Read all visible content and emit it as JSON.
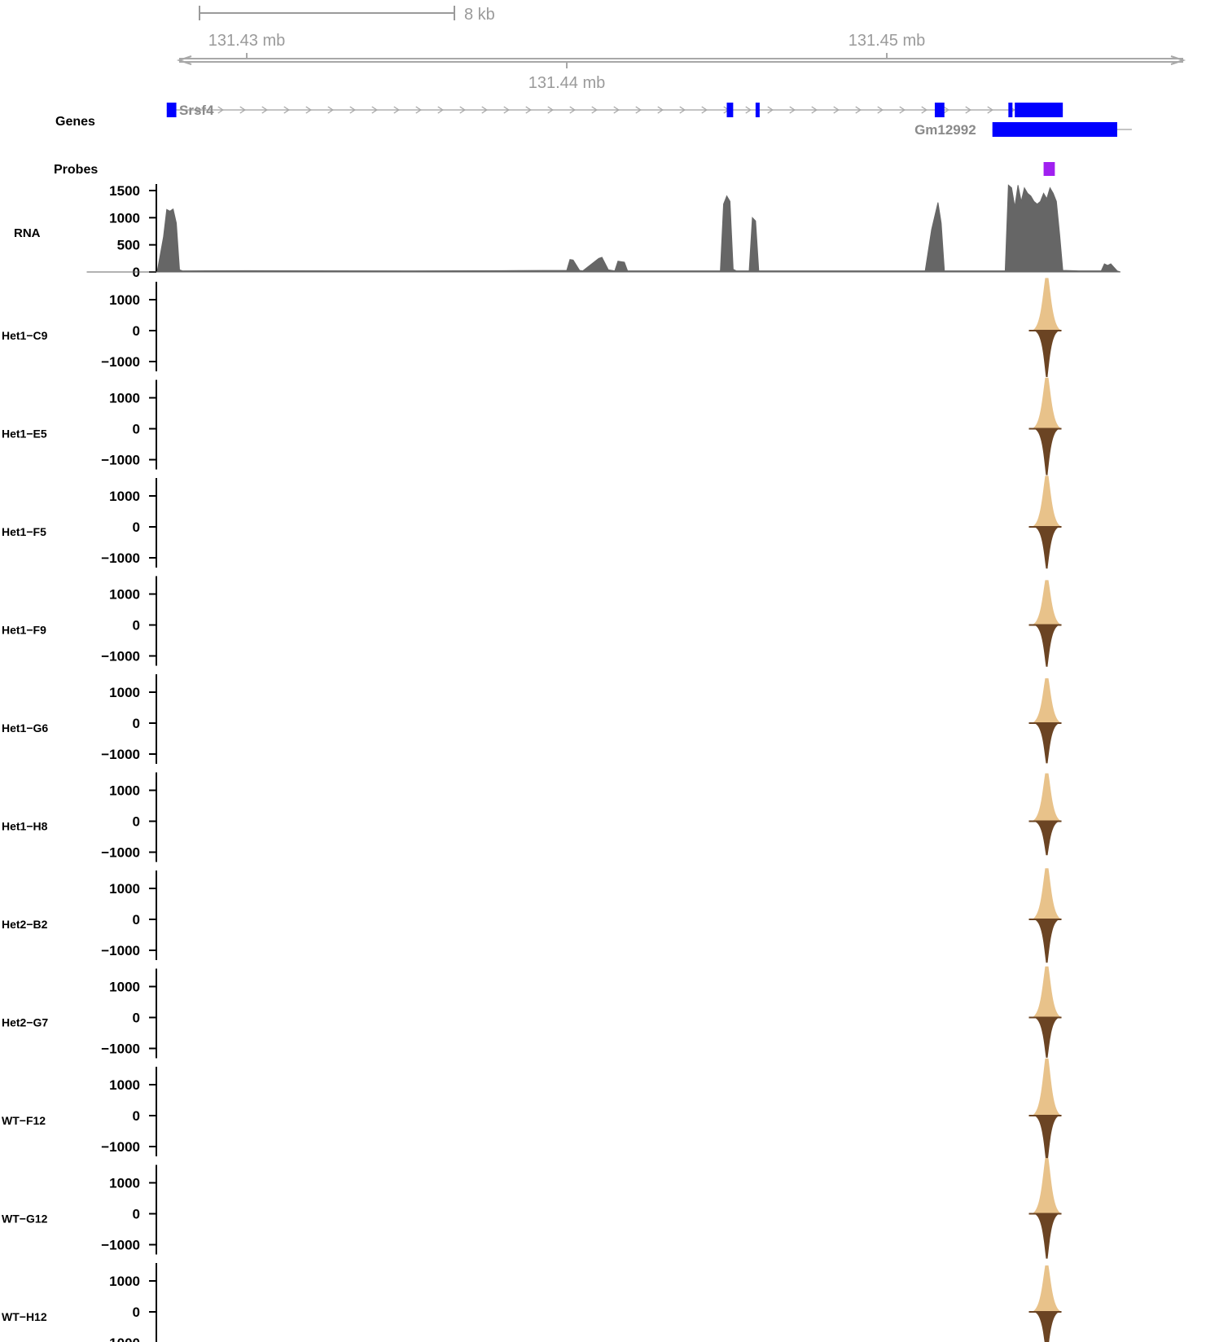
{
  "colors": {
    "gene": "#0000ff",
    "probe": "#a020f0",
    "rna": "#666666",
    "positive": "#e8c28a",
    "negative": "#6b4423",
    "axis_grey": "#a0a0a0"
  },
  "chart_data": {
    "type": "area",
    "x_unit": "mb",
    "scale_bar_label": "8 kb",
    "genome_axis": {
      "ticks": [
        131.43,
        131.44,
        131.45
      ],
      "tick_labels": [
        "131.43 mb",
        "131.44 mb",
        "131.45 mb"
      ]
    },
    "genes_track": {
      "label": "Genes",
      "genes": [
        {
          "name": "Srsf4",
          "strand": "+",
          "start": 131.4275,
          "end": 131.4555,
          "exons": [
            [
              131.4275,
              131.4278
            ],
            [
              131.445,
              131.4452
            ],
            [
              131.4459,
              131.446
            ],
            [
              131.4515,
              131.4518
            ],
            [
              131.4538,
              131.4539
            ],
            [
              131.454,
              131.4555
            ]
          ]
        },
        {
          "name": "Gm12992",
          "strand": "",
          "start": 131.4533,
          "end": 131.4573,
          "exons": [
            [
              131.4533,
              131.4572
            ]
          ]
        }
      ]
    },
    "probes_track": {
      "label": "Probes",
      "probes": [
        [
          131.4549,
          131.4552
        ]
      ]
    },
    "rna_track": {
      "label": "RNA",
      "yticks": [
        0,
        500,
        1000,
        1500
      ],
      "ylim": [
        0,
        1500
      ],
      "x": [
        131.425,
        131.4272,
        131.4274,
        131.4275,
        131.4276,
        131.4277,
        131.4278,
        131.4279,
        131.428,
        131.43,
        131.435,
        131.438,
        131.44,
        131.4401,
        131.4402,
        131.4404,
        131.4405,
        131.441,
        131.4411,
        131.4413,
        131.4415,
        131.4416,
        131.4418,
        131.4419,
        131.442,
        131.4448,
        131.4449,
        131.445,
        131.4451,
        131.4452,
        131.4453,
        131.4457,
        131.4458,
        131.4459,
        131.446,
        131.4461,
        131.447,
        131.4486,
        131.4492,
        131.4505,
        131.4512,
        131.4514,
        131.4516,
        131.4517,
        131.4518,
        131.4519,
        131.453,
        131.4537,
        131.4538,
        131.4539,
        131.454,
        131.4541,
        131.4542,
        131.4543,
        131.4544,
        131.4545,
        131.4546,
        131.4547,
        131.4548,
        131.4549,
        131.455,
        131.4551,
        131.4552,
        131.4553,
        131.4554,
        131.4555,
        131.456,
        131.4567,
        131.4568,
        131.4569,
        131.457,
        131.4572,
        131.4573
      ],
      "y": [
        0,
        0,
        650,
        1150,
        1120,
        1160,
        900,
        40,
        20,
        25,
        20,
        25,
        30,
        230,
        220,
        30,
        20,
        250,
        270,
        40,
        20,
        200,
        180,
        20,
        20,
        20,
        1250,
        1400,
        1300,
        50,
        20,
        20,
        1000,
        940,
        20,
        20,
        20,
        20,
        20,
        20,
        20,
        780,
        1280,
        900,
        20,
        20,
        20,
        20,
        1600,
        1550,
        1200,
        1600,
        1300,
        1550,
        1450,
        1400,
        1300,
        1250,
        1300,
        1450,
        1350,
        1550,
        1450,
        1300,
        700,
        30,
        20,
        20,
        150,
        120,
        150,
        20,
        0
      ]
    },
    "sample_tracks": {
      "yticks": [
        -1000,
        0,
        1000
      ],
      "ylim": [
        -1500,
        1500
      ],
      "peak_center": 131.455,
      "samples": [
        {
          "name": "Het1−C9",
          "pos": 1700,
          "neg": 1500
        },
        {
          "name": "Het1−E5",
          "pos": 1650,
          "neg": 1500
        },
        {
          "name": "Het1−F5",
          "pos": 1650,
          "neg": 1350
        },
        {
          "name": "Het1−F9",
          "pos": 1450,
          "neg": 1350
        },
        {
          "name": "Het1−G6",
          "pos": 1450,
          "neg": 1300
        },
        {
          "name": "Het1−H8",
          "pos": 1550,
          "neg": 1100
        },
        {
          "name": "Het2−B2",
          "pos": 1650,
          "neg": 1400
        },
        {
          "name": "Het2−G7",
          "pos": 1650,
          "neg": 1300
        },
        {
          "name": "WT−F12",
          "pos": 1850,
          "neg": 1500
        },
        {
          "name": "WT−G12",
          "pos": 1800,
          "neg": 1450
        },
        {
          "name": "WT−H12",
          "pos": 1500,
          "neg": 1350
        }
      ]
    }
  }
}
